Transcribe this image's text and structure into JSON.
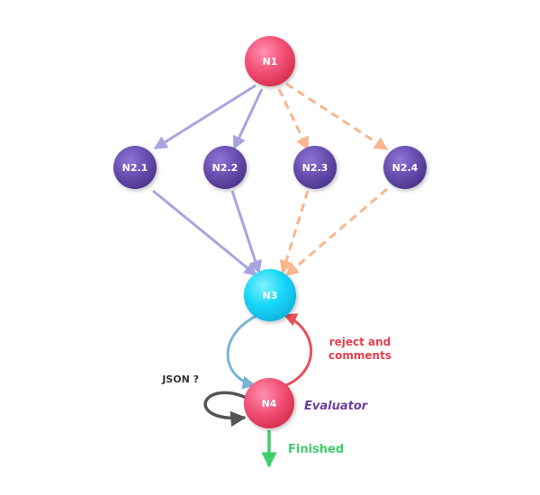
{
  "nodes": {
    "n1": {
      "label": "N1"
    },
    "n21": {
      "label": "N2.1"
    },
    "n22": {
      "label": "N2.2"
    },
    "n23": {
      "label": "N2.3"
    },
    "n24": {
      "label": "N2.4"
    },
    "n3": {
      "label": "N3"
    },
    "n4": {
      "label": "N4"
    }
  },
  "labels": {
    "reject_line1": "reject and",
    "reject_line2": "comments",
    "json": "JSON ?",
    "evaluator": "Evaluator",
    "finished": "Finished"
  },
  "colors": {
    "pink_node": "#f0506e",
    "purple_node": "#6a4fb0",
    "cyan_node": "#19d6f7",
    "solid_edge": "#a9a4e0",
    "dashed_edge": "#f9b68c",
    "loop_blue": "#7ab4d6",
    "loop_red": "#e8505b",
    "self_loop": "#555555",
    "finished_green": "#3fce6a",
    "evaluator_text": "#6b3fa0",
    "reject_text": "#e0404f",
    "json_text": "#333333"
  }
}
